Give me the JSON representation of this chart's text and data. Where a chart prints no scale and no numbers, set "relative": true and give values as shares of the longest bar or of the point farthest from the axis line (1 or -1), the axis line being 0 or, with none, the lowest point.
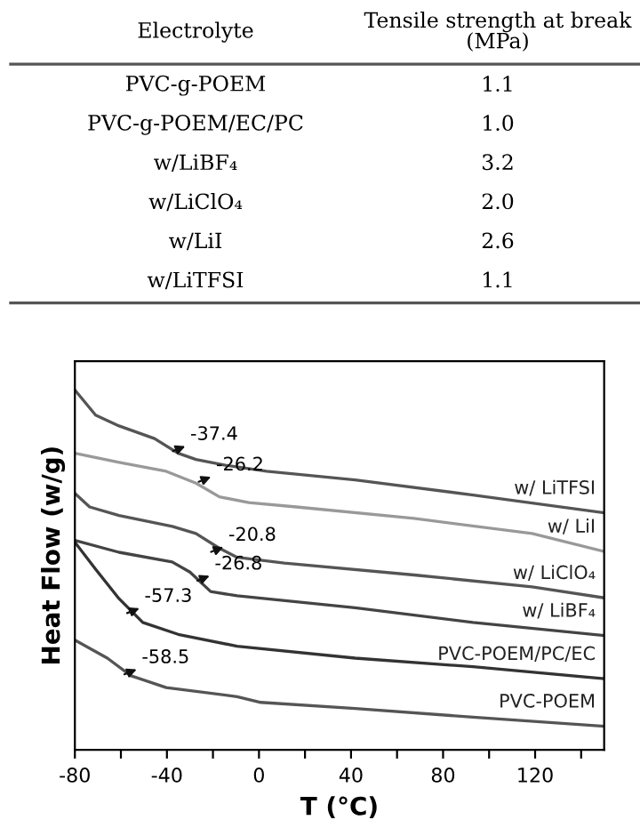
{
  "chart_data": [
    {
      "type": "other",
      "annotations": [
        "Electrolyte",
        "Tensile strength at break\n(MPa)"
      ],
      "categories": [
        "PVC-g-POEM",
        "PVC-g-POEM/EC/PC",
        "w/LiBF₄",
        "w/LiClO₄",
        "w/LiI",
        "w/LiTFSI"
      ],
      "value_labels": [
        "1.1",
        "1.0",
        "3.2",
        "2.0",
        "2.6",
        "1.1"
      ]
    },
    {
      "type": "line",
      "relative": true,
      "xlabel": "T (°C)",
      "ylabel": "Heat Flow (w/g)",
      "xlim": [
        -80,
        150
      ],
      "xticks": [
        -80,
        {
          "value": -60,
          "label": null
        },
        -40,
        {
          "value": -20,
          "label": null
        },
        0,
        {
          "value": 20,
          "label": null
        },
        40,
        {
          "value": 60,
          "label": null
        },
        80,
        {
          "value": 100,
          "label": null
        },
        120,
        {
          "value": 140,
          "label": null
        }
      ],
      "grid": false,
      "legend": false,
      "marker": "none",
      "line_style": "solid",
      "series": [
        {
          "name": "w/ LiTFSI",
          "color": "#555555",
          "x": [
            -80,
            -71,
            -60.8,
            -45.4,
            -35.1,
            -27.4,
            -14.6,
            3.3,
            41.8,
            93,
            149.5
          ],
          "values": [
            1.0,
            0.93,
            0.9,
            0.865,
            0.824,
            0.807,
            0.791,
            0.774,
            0.75,
            0.708,
            0.659
          ]
        },
        {
          "name": "w/ LiI",
          "color": "#999999",
          "x": [
            -80,
            -60.8,
            -40.3,
            -27.4,
            -17.2,
            -4.4,
            16.2,
            67.4,
            118.7,
            149.5
          ],
          "values": [
            0.824,
            0.799,
            0.774,
            0.741,
            0.703,
            0.687,
            0.675,
            0.643,
            0.601,
            0.552
          ]
        },
        {
          "name": "w/ LiClO₄",
          "color": "#555555",
          "x": [
            -80,
            -73.6,
            -60.8,
            -37.7,
            -27.4,
            -17.2,
            -9.5,
            11,
            67.4,
            118.7,
            149.5
          ],
          "values": [
            0.713,
            0.675,
            0.651,
            0.621,
            0.601,
            0.56,
            0.535,
            0.519,
            0.486,
            0.453,
            0.423
          ]
        },
        {
          "name": "w/ LiBF₄",
          "color": "#444444",
          "x": [
            -80,
            -60.8,
            -37.7,
            -30,
            -21,
            -9.5,
            41.8,
            93,
            149.5
          ],
          "values": [
            0.582,
            0.549,
            0.522,
            0.494,
            0.44,
            0.428,
            0.395,
            0.354,
            0.318
          ]
        },
        {
          "name": "PVC-POEM/PC/EC",
          "color": "#333333",
          "x": [
            -80,
            -71,
            -60.8,
            -50.5,
            -35.1,
            -9.5,
            41.8,
            93,
            149.5
          ],
          "values": [
            0.577,
            0.502,
            0.42,
            0.354,
            0.321,
            0.288,
            0.255,
            0.231,
            0.198
          ]
        },
        {
          "name": "PVC-POEM",
          "color": "#555555",
          "x": [
            -80,
            -65.9,
            -55.6,
            -40.3,
            -9.5,
            0.8,
            41.8,
            93,
            149.5
          ],
          "values": [
            0.305,
            0.255,
            0.206,
            0.173,
            0.148,
            0.132,
            0.115,
            0.091,
            0.066
          ]
        }
      ],
      "annotations": [
        {
          "text": "-37.4",
          "x": -37.4,
          "y": 0.83
        },
        {
          "text": "-26.2",
          "x": -26.2,
          "y": 0.745
        },
        {
          "text": "-20.8",
          "x": -20.8,
          "y": 0.55
        },
        {
          "text": "-26.8",
          "x": -26.8,
          "y": 0.47
        },
        {
          "text": "-57.3",
          "x": -57.3,
          "y": 0.38
        },
        {
          "text": "-58.5",
          "x": -58.5,
          "y": 0.21
        }
      ]
    }
  ]
}
